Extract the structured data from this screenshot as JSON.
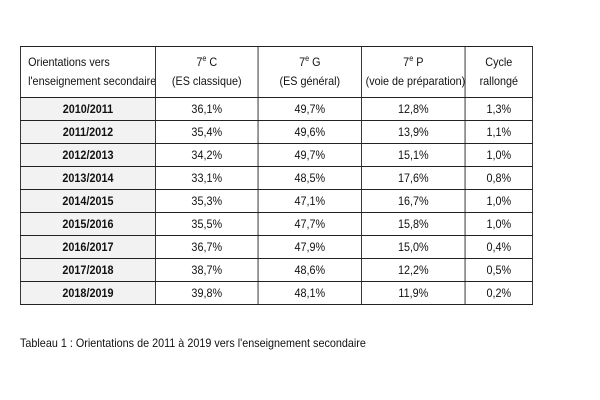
{
  "table": {
    "header": {
      "col1": {
        "line1": "Orientations vers",
        "line2": "l'enseignement secondaire"
      },
      "col2": {
        "main": "7",
        "sup": "e",
        "suffix": " C",
        "line2": "(ES classique)"
      },
      "col3": {
        "main": "7",
        "sup": "e",
        "suffix": " G",
        "line2": "(ES général)"
      },
      "col4": {
        "main": "7",
        "sup": "e",
        "suffix": " P",
        "line2": "(voie de préparation)"
      },
      "col5": {
        "line1": "Cycle",
        "line2": "rallongé"
      }
    },
    "rows": [
      {
        "year": "2010/2011",
        "c": "36,1%",
        "g": "49,7%",
        "p": "12,8%",
        "cycle": "1,3%"
      },
      {
        "year": "2011/2012",
        "c": "35,4%",
        "g": "49,6%",
        "p": "13,9%",
        "cycle": "1,1%"
      },
      {
        "year": "2012/2013",
        "c": "34,2%",
        "g": "49,7%",
        "p": "15,1%",
        "cycle": "1,0%"
      },
      {
        "year": "2013/2014",
        "c": "33,1%",
        "g": "48,5%",
        "p": "17,6%",
        "cycle": "0,8%"
      },
      {
        "year": "2014/2015",
        "c": "35,3%",
        "g": "47,1%",
        "p": "16,7%",
        "cycle": "1,0%"
      },
      {
        "year": "2015/2016",
        "c": "35,5%",
        "g": "47,7%",
        "p": "15,8%",
        "cycle": "1,0%"
      },
      {
        "year": "2016/2017",
        "c": "36,7%",
        "g": "47,9%",
        "p": "15,0%",
        "cycle": "0,4%"
      },
      {
        "year": "2017/2018",
        "c": "38,7%",
        "g": "48,6%",
        "p": "12,2%",
        "cycle": "0,5%"
      },
      {
        "year": "2018/2019",
        "c": "39,8%",
        "g": "48,1%",
        "p": "11,9%",
        "cycle": "0,2%"
      }
    ]
  },
  "caption": "Tableau 1 : Orientations de 2011 à 2019 vers l'enseignement secondaire",
  "colors": {
    "year_cell_bg": "#f2f2f2",
    "border": "#222222"
  }
}
